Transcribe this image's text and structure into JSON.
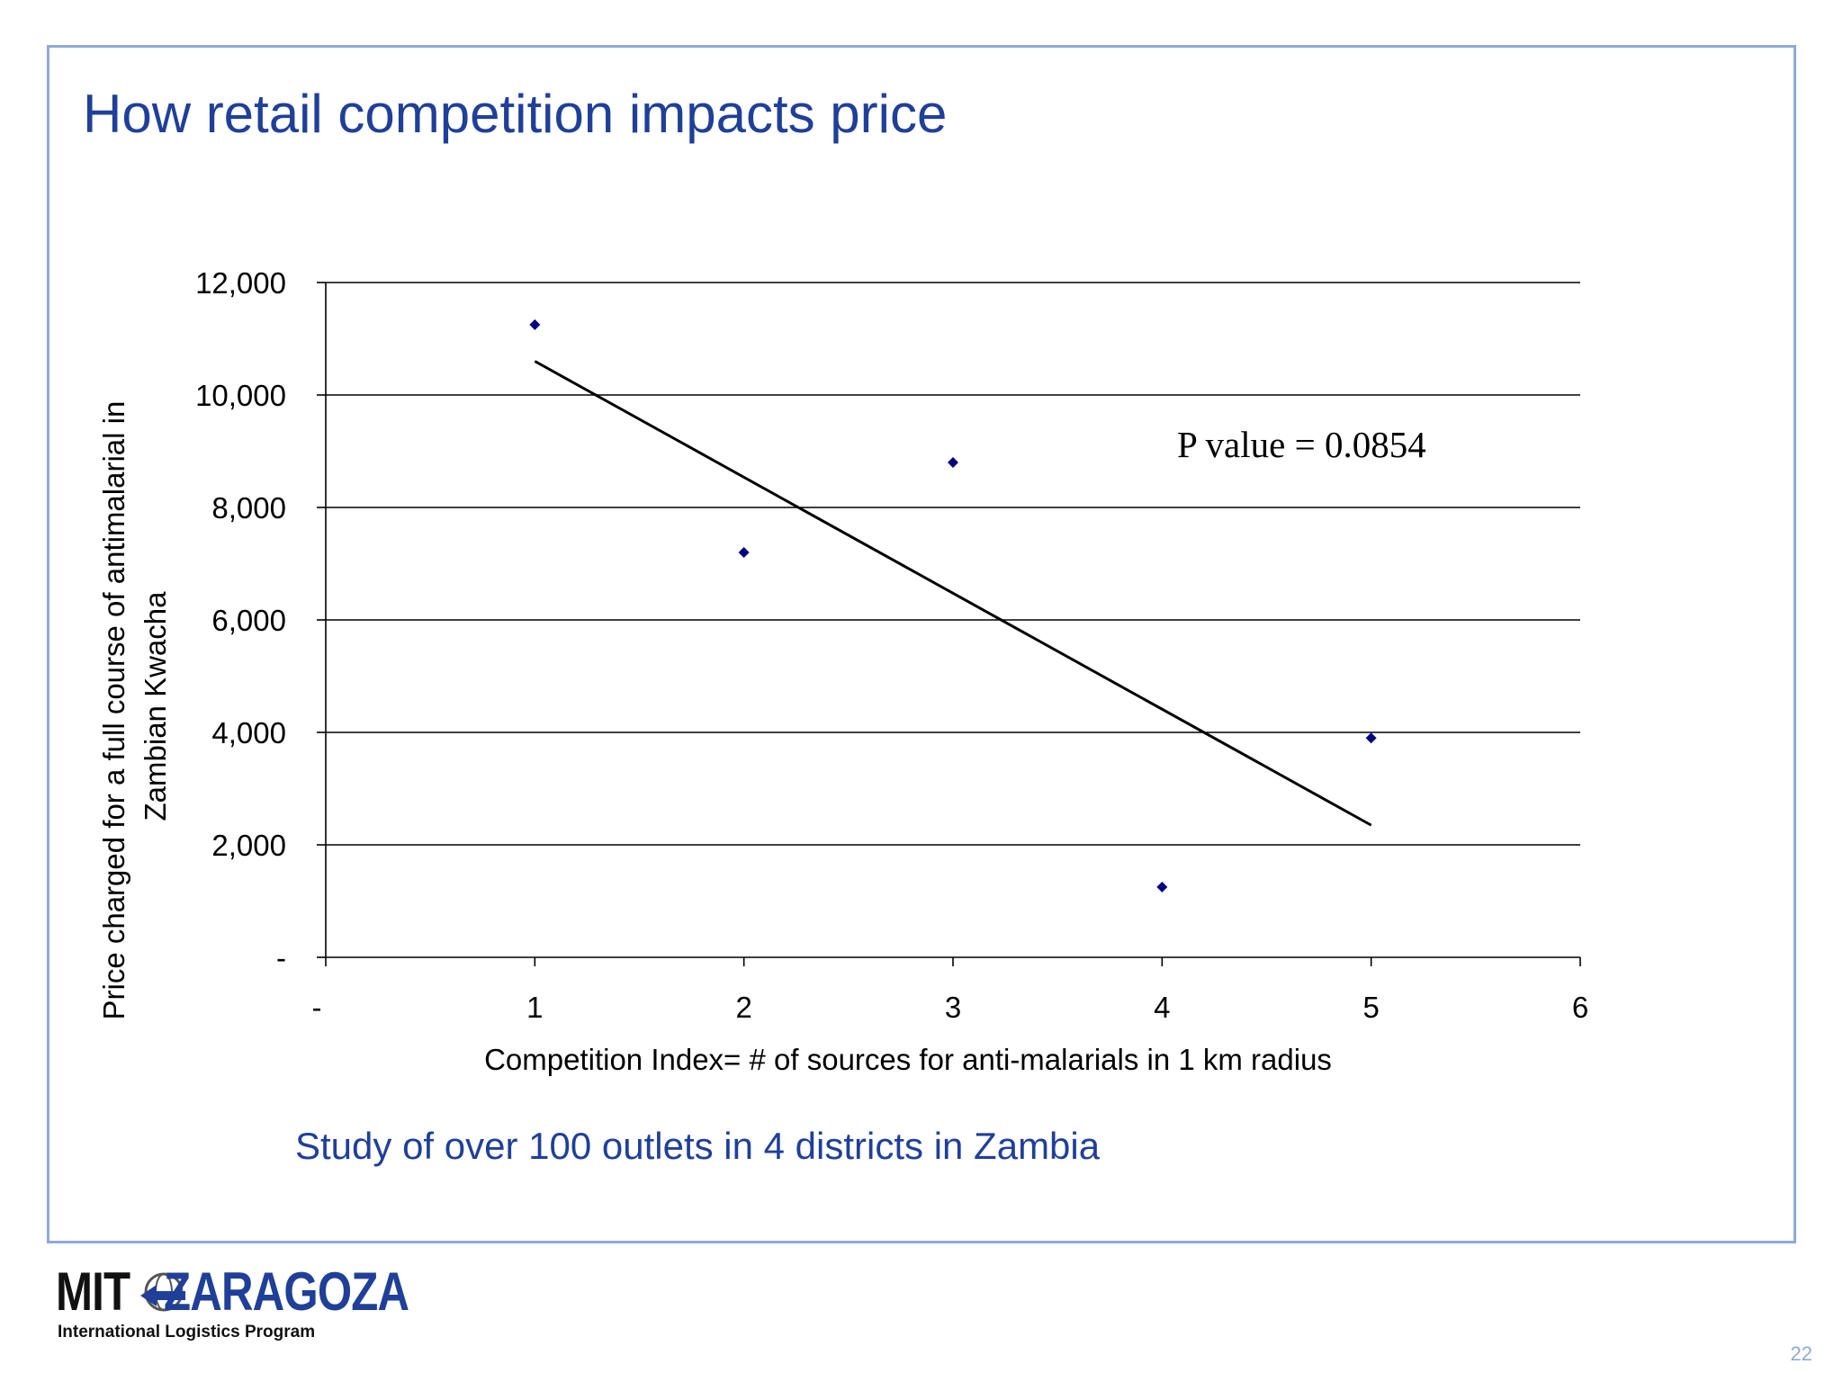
{
  "slide": {
    "title": "How retail competition impacts price",
    "subtitle": "Study of over 100 outlets in 4 districts in Zambia",
    "page_number": "22"
  },
  "logo": {
    "mit": "MIT",
    "zaragoza": "ZARAGOZA",
    "program": "International Logistics Program"
  },
  "chart_data": {
    "type": "scatter",
    "xlabel": "Competition Index= # of sources for anti-malarials in 1 km radius",
    "ylabel": "Price charged for a full course of antimalarial in Zambian Kwacha",
    "xlim": [
      0,
      6
    ],
    "ylim": [
      0,
      12000
    ],
    "x_ticks": [
      0,
      1,
      2,
      3,
      4,
      5,
      6
    ],
    "x_tick_labels": [
      "-",
      "1",
      "2",
      "3",
      "4",
      "5",
      "6"
    ],
    "y_ticks": [
      0,
      2000,
      4000,
      6000,
      8000,
      10000,
      12000
    ],
    "y_tick_labels": [
      "-",
      "2,000",
      "4,000",
      "6,000",
      "8,000",
      "10,000",
      "12,000"
    ],
    "grid": "horizontal",
    "marker_color": "#000080",
    "series": [
      {
        "x": [
          1,
          2,
          3,
          4,
          5
        ],
        "y": [
          11250,
          7200,
          8800,
          1250,
          3900
        ]
      }
    ],
    "trendline": {
      "type": "linear",
      "x": [
        1,
        5
      ],
      "y": [
        10600,
        2350
      ]
    },
    "annotation": "P value = 0.0854"
  }
}
